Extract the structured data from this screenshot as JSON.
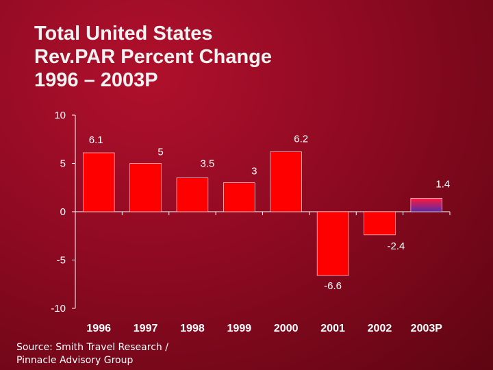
{
  "title_lines": [
    "Total United States",
    "Rev.PAR Percent Change",
    "1996 – 2003P"
  ],
  "source_lines": [
    "Source: Smith Travel Research /",
    "Pinnacle Advisory Group"
  ],
  "colors": {
    "bar": "#ff0000",
    "bar_2003p": "#6c2fb0",
    "axis": "#ffffff",
    "text": "#ffffff"
  },
  "chart_data": {
    "type": "bar",
    "title": "Total United States Rev.PAR Percent Change 1996 – 2003P",
    "categories": [
      "1996",
      "1997",
      "1998",
      "1999",
      "2000",
      "2001",
      "2002",
      "2003P"
    ],
    "values": [
      6.1,
      5,
      3.5,
      3,
      6.2,
      -6.6,
      -2.4,
      1.4
    ],
    "data_labels": [
      "6.1",
      "5",
      "3.5",
      "3",
      "6.2",
      "-6.6",
      "-2.4",
      "1.4"
    ],
    "yticks": [
      "10",
      "5",
      "0",
      "-5",
      "-10"
    ],
    "ylim": [
      -10,
      10
    ],
    "xlabel": "",
    "ylabel": "",
    "grid": false,
    "legend": "none"
  }
}
